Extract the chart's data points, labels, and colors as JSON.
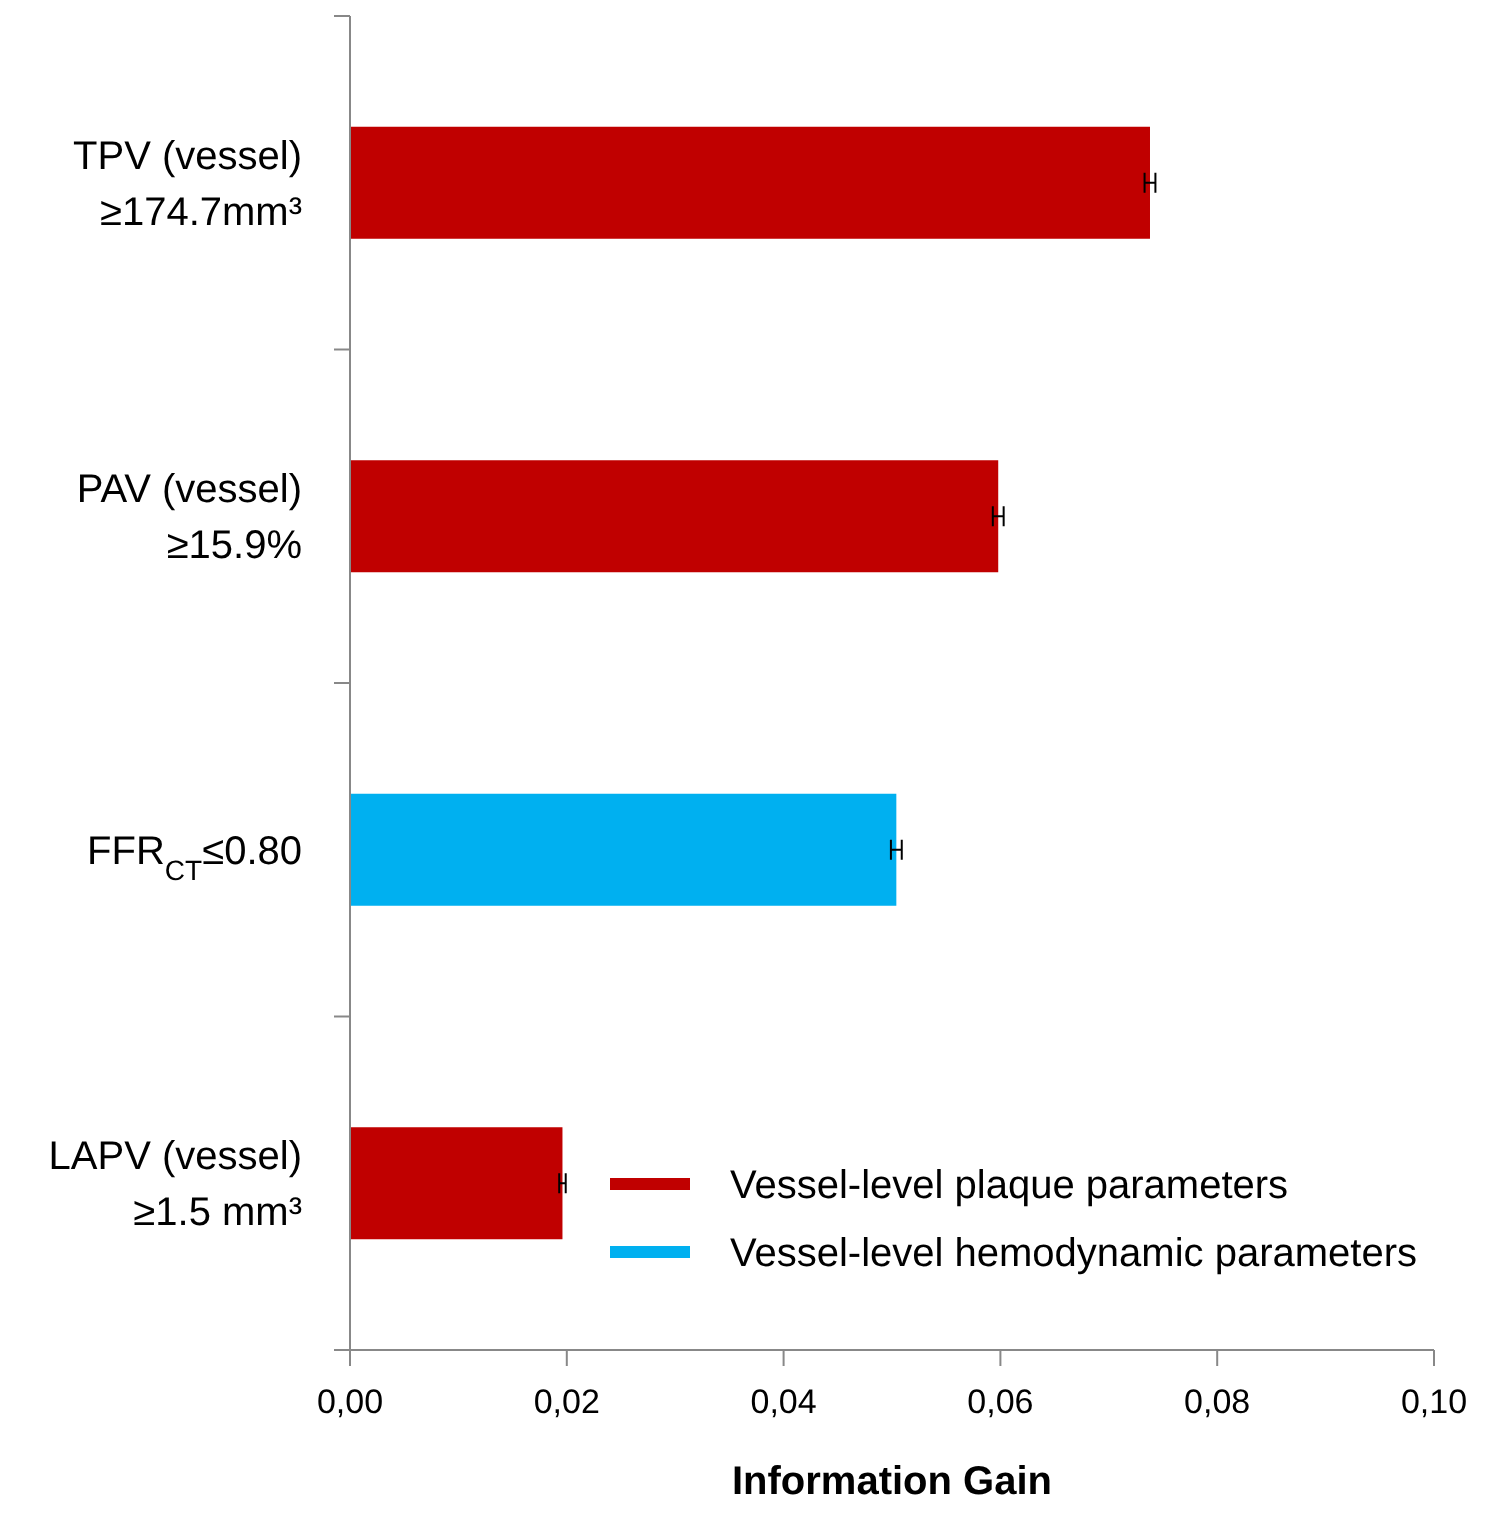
{
  "chart_data": {
    "type": "bar",
    "orientation": "horizontal",
    "stacked": true,
    "categories": [
      "TPV (vessel)\n≥174.7mm³",
      "PAV (vessel)\n≥15.9%",
      "FFR$_{CT}$≤0.80",
      "LAPV (vessel)\n≥1.5 mm³"
    ],
    "series": [
      {
        "name": "Vessel-level plaque parameters",
        "color": "#c00000",
        "values": [
          0.0738,
          0.0598,
          null,
          0.0196
        ],
        "errors": [
          0.0005,
          0.0005,
          null,
          0.0003
        ]
      },
      {
        "name": "Vessel-level hemodynamic parameters",
        "color": "#00b0f0",
        "values": [
          null,
          null,
          0.0504,
          null
        ],
        "errors": [
          null,
          null,
          0.0005,
          null
        ]
      }
    ],
    "xlim": [
      0,
      0.1
    ],
    "xticks": [
      {
        "value": 0,
        "label": "0,00"
      },
      {
        "value": 0.02,
        "label": "0,02"
      },
      {
        "value": 0.04,
        "label": "0,04"
      },
      {
        "value": 0.06,
        "label": "0,06"
      },
      {
        "value": 0.08,
        "label": "0,08"
      },
      {
        "value": 0.1,
        "label": "0,10"
      }
    ],
    "xlabel": "Information Gain",
    "legend": "bottom right",
    "grid": false
  }
}
